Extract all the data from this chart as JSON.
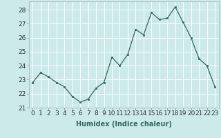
{
  "x": [
    0,
    1,
    2,
    3,
    4,
    5,
    6,
    7,
    8,
    9,
    10,
    11,
    12,
    13,
    14,
    15,
    16,
    17,
    18,
    19,
    20,
    21,
    22,
    23
  ],
  "y": [
    22.8,
    23.5,
    23.2,
    22.8,
    22.5,
    21.8,
    21.4,
    21.6,
    22.4,
    22.8,
    24.6,
    24.0,
    24.8,
    26.6,
    26.2,
    27.8,
    27.3,
    27.4,
    28.2,
    27.1,
    26.0,
    24.5,
    24.0,
    22.5
  ],
  "line_color": "#2e6b5e",
  "marker": "s",
  "marker_size": 2,
  "bg_color": "#cceaea",
  "grid_color": "#ffffff",
  "xlabel": "Humidex (Indice chaleur)",
  "xlim": [
    -0.5,
    23.5
  ],
  "ylim": [
    21.0,
    28.6
  ],
  "yticks": [
    21,
    22,
    23,
    24,
    25,
    26,
    27,
    28
  ],
  "xticks": [
    0,
    1,
    2,
    3,
    4,
    5,
    6,
    7,
    8,
    9,
    10,
    11,
    12,
    13,
    14,
    15,
    16,
    17,
    18,
    19,
    20,
    21,
    22,
    23
  ],
  "xlabel_fontsize": 7,
  "tick_fontsize": 6.5
}
